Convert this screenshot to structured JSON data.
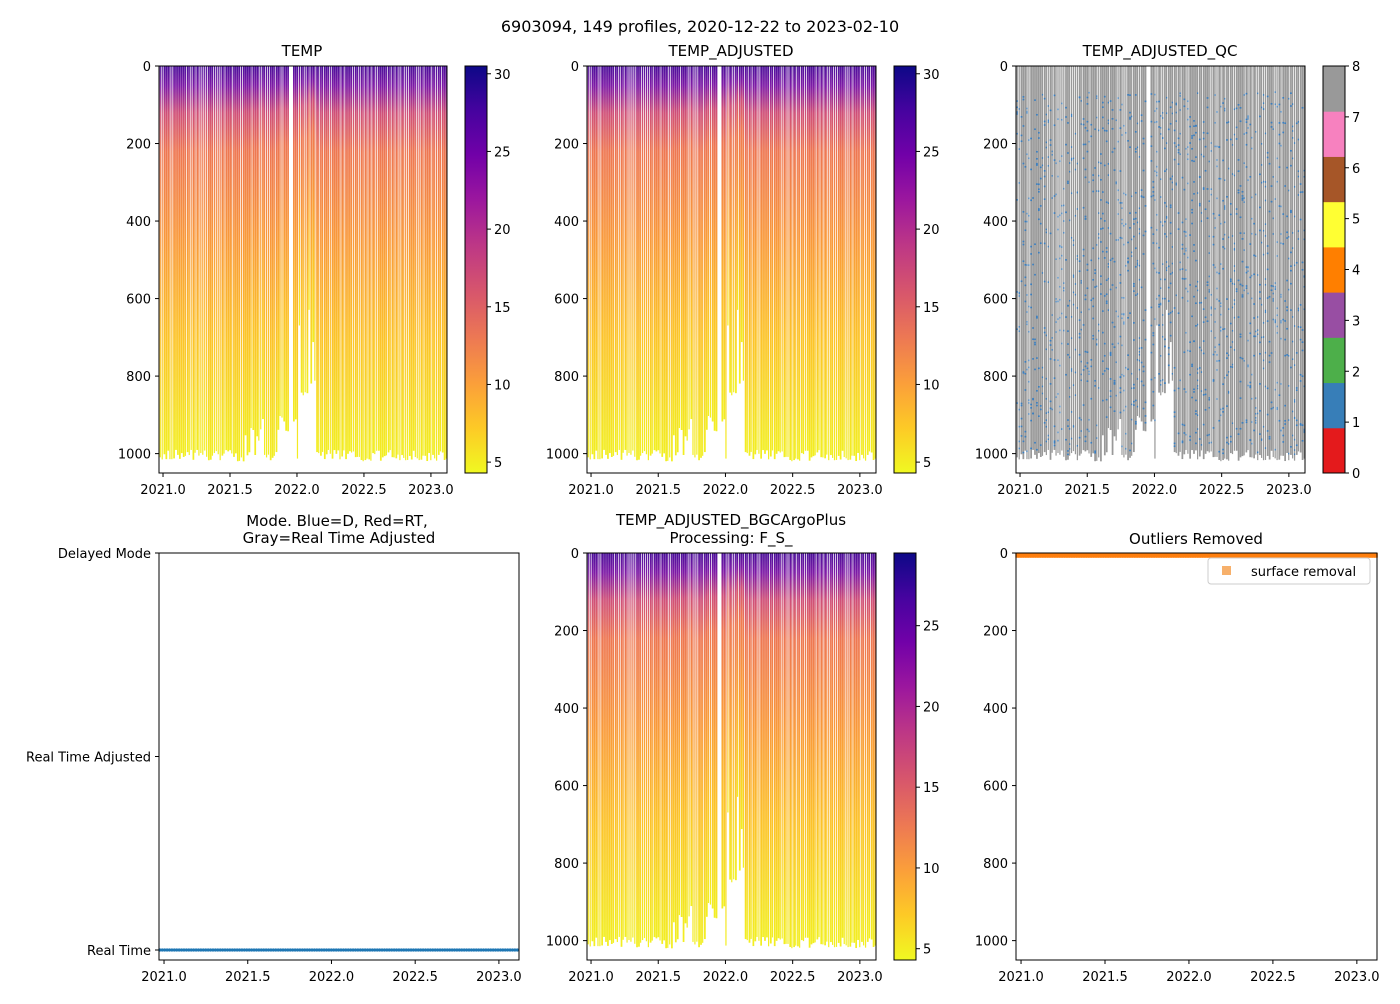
{
  "figure_title": "6903094, 149 profiles, 2020-12-22 to 2023-02-10",
  "colors": {
    "plasma_r": [
      "#f0f921",
      "#fdca26",
      "#fb9f3a",
      "#ed7953",
      "#d8576b",
      "#bd3786",
      "#9c179e",
      "#7201a8",
      "#46039f",
      "#0d0887"
    ],
    "qc": [
      "#e41a1c",
      "#377eb8",
      "#4daf4a",
      "#984ea3",
      "#ff7f00",
      "#ffff33",
      "#a65628",
      "#f781bf",
      "#999999"
    ],
    "qc_dot": "#3a7ebf",
    "mode_dots": "#1f77b4",
    "outlier": "#ff7f0e",
    "outlier_legend": "#f7b06b"
  },
  "chart_data": [
    {
      "id": "temp",
      "type": "heatmap",
      "title": "TEMP",
      "xlim": [
        2020.97,
        2023.12
      ],
      "ylim": [
        1050,
        0
      ],
      "xticks": [
        "2021.0",
        "2021.5",
        "2022.0",
        "2022.5",
        "2023.0"
      ],
      "yticks": [
        "0",
        "200",
        "400",
        "600",
        "800",
        "1000"
      ],
      "colorbar": {
        "min": 4.3,
        "max": 30.5,
        "ticks": [
          "5",
          "10",
          "15",
          "20",
          "25",
          "30"
        ],
        "tick_values": [
          5,
          10,
          15,
          20,
          25,
          30
        ]
      }
    },
    {
      "id": "temp_adj",
      "type": "heatmap",
      "title": "TEMP_ADJUSTED",
      "xlim": [
        2020.97,
        2023.12
      ],
      "ylim": [
        1050,
        0
      ],
      "xticks": [
        "2021.0",
        "2021.5",
        "2022.0",
        "2022.5",
        "2023.0"
      ],
      "yticks": [
        "0",
        "200",
        "400",
        "600",
        "800",
        "1000"
      ],
      "colorbar": {
        "min": 4.3,
        "max": 30.5,
        "ticks": [
          "5",
          "10",
          "15",
          "20",
          "25",
          "30"
        ],
        "tick_values": [
          5,
          10,
          15,
          20,
          25,
          30
        ]
      }
    },
    {
      "id": "temp_qc",
      "type": "heatmap",
      "title": "TEMP_ADJUSTED_QC",
      "xlim": [
        2020.97,
        2023.12
      ],
      "ylim": [
        1050,
        0
      ],
      "xticks": [
        "2021.0",
        "2021.5",
        "2022.0",
        "2022.5",
        "2023.0"
      ],
      "yticks": [
        "0",
        "200",
        "400",
        "600",
        "800",
        "1000"
      ],
      "colorbar": {
        "min": 0,
        "max": 8,
        "ticks": [
          "0",
          "1",
          "2",
          "3",
          "4",
          "5",
          "6",
          "7",
          "8"
        ],
        "tick_values": [
          0,
          1,
          2,
          3,
          4,
          5,
          6,
          7,
          8
        ]
      }
    },
    {
      "id": "mode",
      "type": "scatter",
      "title_line1": "Mode. Blue=D, Red=RT,",
      "title_line2": "Gray=Real Time Adjusted",
      "xlim": [
        2020.97,
        2023.12
      ],
      "xticks": [
        "2021.0",
        "2021.5",
        "2022.0",
        "2022.5",
        "2023.0"
      ],
      "ycategories": [
        "Delayed Mode",
        "Real Time Adjusted",
        "Real Time"
      ],
      "points_at": "Real Time"
    },
    {
      "id": "temp_bgc",
      "type": "heatmap",
      "title_line1": "TEMP_ADJUSTED_BGCArgoPlus",
      "title_line2": "Processing: F_S_",
      "xlim": [
        2020.97,
        2023.12
      ],
      "ylim": [
        1050,
        0
      ],
      "xticks": [
        "2021.0",
        "2021.5",
        "2022.0",
        "2022.5",
        "2023.0"
      ],
      "yticks": [
        "0",
        "200",
        "400",
        "600",
        "800",
        "1000"
      ],
      "colorbar": {
        "min": 4.3,
        "max": 29.5,
        "ticks": [
          "5",
          "10",
          "15",
          "20",
          "25"
        ],
        "tick_values": [
          5,
          10,
          15,
          20,
          25
        ]
      }
    },
    {
      "id": "outliers",
      "type": "scatter",
      "title": "Outliers Removed",
      "xlim": [
        2020.97,
        2023.12
      ],
      "ylim": [
        1050,
        0
      ],
      "xticks": [
        "2021.0",
        "2021.5",
        "2022.0",
        "2022.5",
        "2023.0"
      ],
      "yticks": [
        "0",
        "200",
        "400",
        "600",
        "800",
        "1000"
      ],
      "legend": "surface removal",
      "legend_position": "top-right",
      "band_depth": [
        0,
        12
      ]
    }
  ]
}
